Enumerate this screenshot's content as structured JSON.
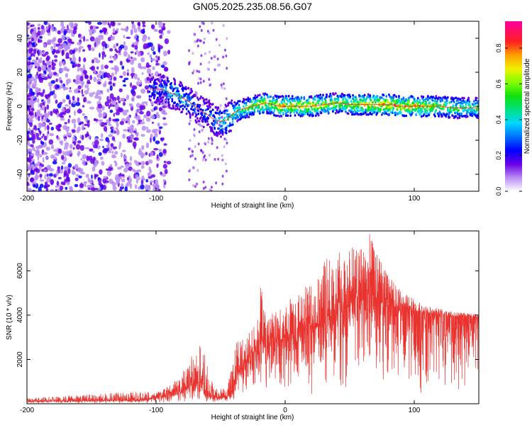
{
  "figure_title": "GN05.2025.235.08.56.G07",
  "colorbar_label": "Normalized spectral amplitude",
  "colors": {
    "snr_line": "#e8332f",
    "spectrogram_low": "#8a2be2",
    "spectrogram_ridge": "#ff3030",
    "axis": "#000000"
  },
  "chart_data": [
    {
      "type": "heatmap",
      "title": "GN05.2025.235.08.56.G07",
      "xlabel": "Height of straight line (km)",
      "ylabel": "Frequency (Hz)",
      "xlim": [
        -200,
        150
      ],
      "ylim": [
        -50,
        50
      ],
      "xticks": [
        -200,
        -100,
        0,
        100
      ],
      "yticks": [
        -40,
        -20,
        0,
        20,
        40
      ],
      "colorbar": {
        "label": "Normalized spectral amplitude",
        "range": [
          0,
          0.95
        ],
        "ticks": [
          0.0,
          0.2,
          0.4,
          0.6,
          0.8
        ]
      },
      "ridge": {
        "x": [
          -105,
          -95,
          -90,
          -85,
          -80,
          -75,
          -70,
          -65,
          -60,
          -55,
          -50,
          -45,
          -40,
          -35,
          -30,
          -25,
          -20,
          -15,
          -10,
          -5,
          0,
          10,
          20,
          30,
          40,
          50,
          60,
          70,
          80,
          90,
          100,
          110,
          120,
          130,
          140,
          150
        ],
        "y": [
          10,
          10,
          8,
          7,
          5,
          3,
          0,
          -3,
          -5,
          -8,
          -9,
          -8,
          -4,
          -2,
          -1,
          0,
          1,
          2,
          1,
          0,
          0,
          0,
          0,
          1,
          2,
          1,
          1,
          1,
          1,
          0,
          0,
          0,
          0,
          -1,
          -1,
          -1
        ],
        "amplitude": [
          0.3,
          0.35,
          0.4,
          0.45,
          0.45,
          0.4,
          0.35,
          0.3,
          0.35,
          0.4,
          0.45,
          0.5,
          0.55,
          0.6,
          0.65,
          0.7,
          0.8,
          0.75,
          0.7,
          0.8,
          0.85,
          0.8,
          0.85,
          0.75,
          0.7,
          0.75,
          0.8,
          0.9,
          0.9,
          0.85,
          0.85,
          0.8,
          0.7,
          0.65,
          0.6,
          0.6
        ]
      }
    },
    {
      "type": "line",
      "xlabel": "Height of straight line (km)",
      "ylabel": "SNR (10 * v/v)",
      "xlim": [
        -200,
        150
      ],
      "ylim": [
        0,
        7800
      ],
      "xticks": [
        -200,
        -100,
        0,
        100
      ],
      "yticks": [
        2000,
        4000,
        6000
      ],
      "series": [
        {
          "name": "SNR",
          "x": [
            -200,
            -180,
            -160,
            -140,
            -120,
            -110,
            -100,
            -90,
            -80,
            -75,
            -70,
            -65,
            -60,
            -55,
            -50,
            -45,
            -40,
            -38,
            -35,
            -30,
            -25,
            -20,
            -18,
            -15,
            -10,
            -5,
            0,
            10,
            20,
            30,
            40,
            50,
            60,
            65,
            70,
            80,
            90,
            100,
            110,
            120,
            130,
            140,
            150
          ],
          "values": [
            100,
            130,
            130,
            160,
            160,
            200,
            280,
            400,
            550,
            800,
            900,
            1000,
            400,
            300,
            280,
            300,
            600,
            1400,
            1500,
            1900,
            2400,
            2800,
            3300,
            2500,
            2800,
            2900,
            3000,
            3300,
            3600,
            3800,
            4500,
            4700,
            4900,
            5000,
            4800,
            4500,
            4300,
            4200,
            4100,
            4000,
            3950,
            3900,
            3900
          ],
          "peak_envelope": [
            260,
            330,
            380,
            480,
            560,
            560,
            500,
            800,
            1300,
            2000,
            2300,
            2800,
            1700,
            700,
            700,
            800,
            2000,
            2900,
            2800,
            3100,
            3400,
            4200,
            6400,
            3600,
            4100,
            4200,
            4600,
            5200,
            5800,
            6500,
            6900,
            7100,
            7300,
            7800,
            6900,
            5800,
            5100,
            4700,
            4400,
            4300,
            4150,
            4100,
            4050
          ]
        }
      ]
    }
  ]
}
